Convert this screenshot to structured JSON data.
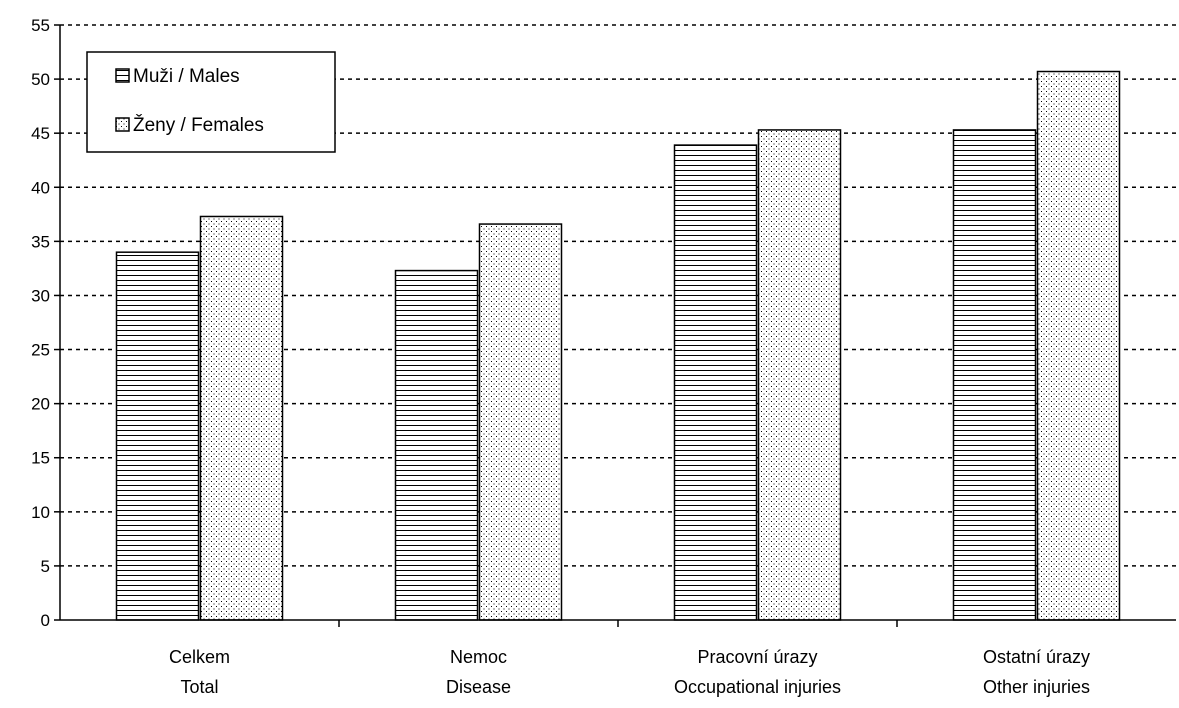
{
  "chart_data": {
    "type": "bar",
    "categories": [
      [
        "Celkem",
        "Total"
      ],
      [
        "Nemoc",
        "Disease"
      ],
      [
        "Pracovní úrazy",
        "Occupational injuries"
      ],
      [
        "Ostatní úrazy",
        "Other injuries"
      ]
    ],
    "series": [
      {
        "name": "Muži / Males",
        "pattern": "horizontal-lines",
        "values": [
          34.0,
          32.3,
          43.9,
          45.3
        ]
      },
      {
        "name": "Ženy / Females",
        "pattern": "dots",
        "values": [
          37.3,
          36.6,
          45.3,
          50.7
        ]
      }
    ],
    "ylim": [
      0,
      55
    ],
    "yticks": [
      "0",
      "5",
      "10",
      "15",
      "20",
      "25",
      "30",
      "35",
      "40",
      "45",
      "50",
      "55"
    ],
    "grid": true,
    "grid_style": "dashed",
    "legend_position": "top-left",
    "colors": {
      "bar_fill": "#ffffff",
      "bar_pattern": "#000000",
      "bar_stroke": "#000000",
      "grid": "#000000"
    }
  }
}
